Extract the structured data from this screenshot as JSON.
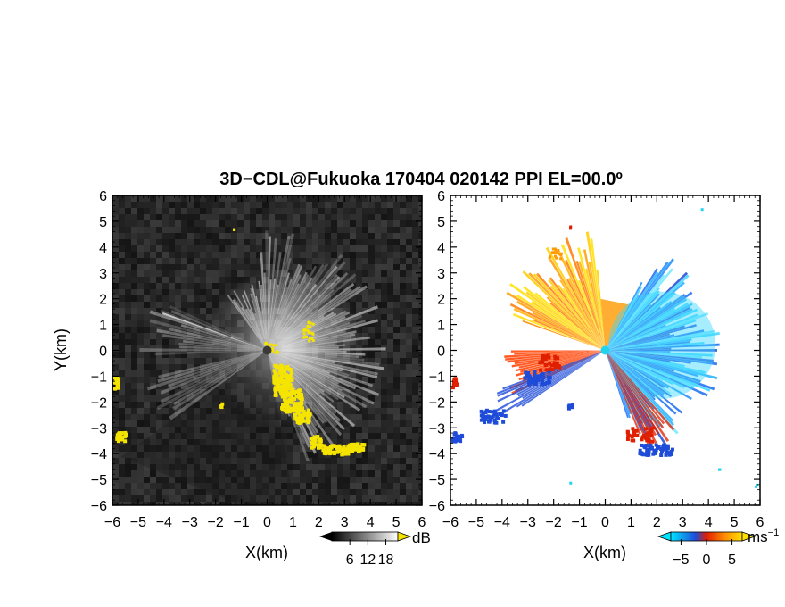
{
  "figure": {
    "title": "3D−CDL@Fukuoka 170404 020142 PPI EL=00.0º"
  },
  "chart_data": [
    {
      "type": "heatmap",
      "panel": "left",
      "quantity": "backscatter intensity",
      "xlabel": "X(km)",
      "ylabel": "Y(km)",
      "xlim": [
        -6,
        6
      ],
      "ylim": [
        -6,
        6
      ],
      "xticks": [
        "−6",
        "−5",
        "−4",
        "−3",
        "−2",
        "−1",
        "0",
        "1",
        "2",
        "3",
        "4",
        "5",
        "6"
      ],
      "yticks": [
        "6",
        "5",
        "4",
        "3",
        "2",
        "1",
        "0",
        "−1",
        "−2",
        "−3",
        "−4",
        "−5",
        "−6"
      ],
      "background": "noise (dark gray)",
      "pattern": "bright radial beams fanning out from radar origin (0,0) mostly eastward, with a narrow dark wedge to the southwest",
      "overlay_color": "#f5e400",
      "overlay_regions": "yellow pixels at around (0.5..1.5, -0.5..-2.5), (2..3.5, -3.5..-4), near left edge (-6, -1.5..-3.5)",
      "colorbar": {
        "unit": "dB",
        "ticks": [
          6,
          12,
          18
        ],
        "range": [
          0,
          22
        ],
        "colors": [
          "#000000",
          "#ffffff"
        ],
        "over_color": "#f5e400"
      }
    },
    {
      "type": "heatmap",
      "panel": "right",
      "quantity": "radial velocity",
      "xlabel": "X(km)",
      "xlim": [
        -6,
        6
      ],
      "ylim": [
        -6,
        6
      ],
      "xticks": [
        "−6",
        "−5",
        "−4",
        "−3",
        "−2",
        "−1",
        "0",
        "1",
        "2",
        "3",
        "4",
        "5",
        "6"
      ],
      "yticks": [
        "6",
        "5",
        "4",
        "3",
        "2",
        "1",
        "0",
        "−1",
        "−2",
        "−3",
        "−4",
        "−5",
        "−6"
      ],
      "background": "#ffffff",
      "pattern": "positive velocities (orange/yellow) to the northwest, negative velocities (blue/cyan) to the east and southeast, red fringes along the southern beam edges",
      "colorbar": {
        "unit": "ms",
        "unit_exponent": "−1",
        "ticks": [
          -5,
          0,
          5
        ],
        "range": [
          -7,
          7
        ],
        "colors": [
          "#00e5ff",
          "#1e4bd8",
          "#e01f00",
          "#ff8a00",
          "#ffe000"
        ]
      }
    }
  ]
}
